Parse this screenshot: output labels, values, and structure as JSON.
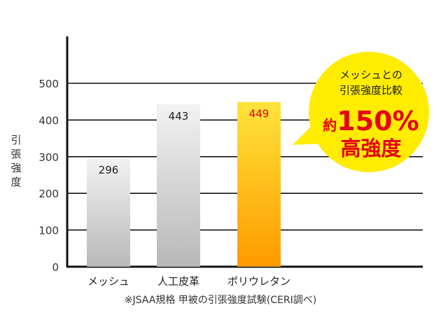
{
  "chart_data": {
    "type": "bar",
    "title": "",
    "xlabel": "",
    "ylabel": "引張強度",
    "ylim": [
      0,
      600
    ],
    "yticks": [
      0,
      100,
      200,
      300,
      400,
      500
    ],
    "grid": true,
    "categories": [
      "メッシュ",
      "人工皮革",
      "ポリウレタン"
    ],
    "values": [
      296,
      443,
      449
    ],
    "value_labels": [
      "296",
      "443",
      "449"
    ],
    "highlight_index": 2,
    "colors": {
      "default_bar_top": "#f2f2f2",
      "default_bar_bottom": "#b8b8b8",
      "highlight_top": "#ffe43a",
      "highlight_bottom": "#ff9a00",
      "highlight_label": "#e60012",
      "callout_fill": "#ffec00",
      "callout_text": "#e60012"
    },
    "annotations": {
      "callout_line1": "メッシュとの",
      "callout_line2": "引張強度比較",
      "callout_prefix": "約",
      "callout_value": "150%",
      "callout_line4": "高強度"
    },
    "footnote": "※JSAA規格 甲被の引張強度試験(CERI調べ)"
  }
}
